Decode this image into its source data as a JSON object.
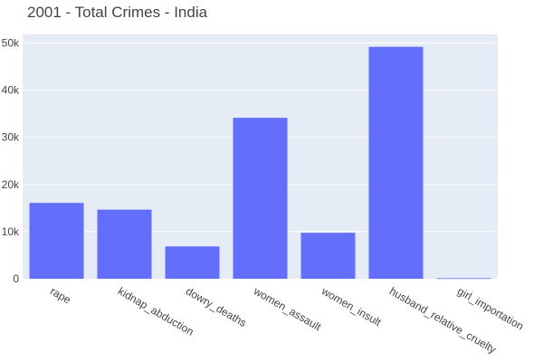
{
  "chart_data": {
    "type": "bar",
    "title": "2001 - Total Crimes - India",
    "xlabel": "",
    "ylabel": "",
    "categories": [
      "rape",
      "kidnap_abduction",
      "dowry_deaths",
      "women_assault",
      "women_insult",
      "husband_relative_cruelty",
      "girl_importation"
    ],
    "values": [
      16075,
      14645,
      6851,
      34124,
      9746,
      49170,
      114
    ],
    "ylim": [
      0,
      51800
    ],
    "yticks": [
      0,
      10000,
      20000,
      30000,
      40000,
      50000
    ],
    "ytick_labels": [
      "0",
      "10k",
      "20k",
      "30k",
      "40k",
      "50k"
    ],
    "grid": true,
    "colors": {
      "bar": "#636efa",
      "plot_bg": "#e5ecf6",
      "grid": "#ffffff",
      "text": "#444444"
    }
  }
}
